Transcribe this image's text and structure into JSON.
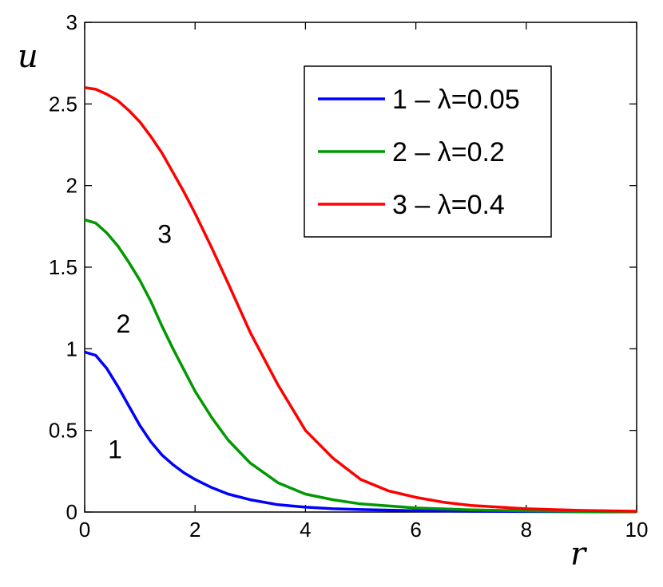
{
  "chart_data": {
    "type": "line",
    "xlabel": "r",
    "ylabel": "u",
    "xlim": [
      0,
      10
    ],
    "ylim": [
      0,
      3
    ],
    "xticks": [
      "0",
      "2",
      "4",
      "6",
      "8",
      "10"
    ],
    "yticks": [
      "0",
      "0.5",
      "1",
      "1.5",
      "2",
      "2.5",
      "3"
    ],
    "grid": false,
    "legend_position": "top-right",
    "series": [
      {
        "name": "1 – λ=0.05",
        "curve_label": "1",
        "color": "#0000ff",
        "x": [
          0,
          0.2,
          0.4,
          0.6,
          0.8,
          1.0,
          1.2,
          1.4,
          1.6,
          1.8,
          2.0,
          2.3,
          2.6,
          3.0,
          3.5,
          4.0,
          4.5,
          5.0,
          6.0,
          7.0,
          8.0,
          9.0,
          10.0
        ],
        "y": [
          0.98,
          0.96,
          0.88,
          0.77,
          0.65,
          0.53,
          0.43,
          0.35,
          0.29,
          0.24,
          0.2,
          0.15,
          0.11,
          0.075,
          0.045,
          0.03,
          0.02,
          0.015,
          0.008,
          0.005,
          0.003,
          0.002,
          0.001
        ]
      },
      {
        "name": "2 – λ=0.2",
        "curve_label": "2",
        "color": "#009900",
        "x": [
          0,
          0.2,
          0.4,
          0.6,
          0.8,
          1.0,
          1.2,
          1.4,
          1.6,
          1.8,
          2.0,
          2.3,
          2.6,
          3.0,
          3.5,
          4.0,
          4.5,
          5.0,
          6.0,
          7.0,
          8.0,
          9.0,
          10.0
        ],
        "y": [
          1.79,
          1.77,
          1.71,
          1.63,
          1.53,
          1.42,
          1.29,
          1.14,
          1.0,
          0.87,
          0.74,
          0.58,
          0.44,
          0.3,
          0.18,
          0.11,
          0.075,
          0.05,
          0.025,
          0.013,
          0.007,
          0.004,
          0.002
        ]
      },
      {
        "name": "3 – λ=0.4",
        "curve_label": "3",
        "color": "#ff0000",
        "x": [
          0,
          0.2,
          0.4,
          0.6,
          0.8,
          1.0,
          1.2,
          1.4,
          1.6,
          1.8,
          2.0,
          2.3,
          2.6,
          3.0,
          3.5,
          4.0,
          4.5,
          5.0,
          5.5,
          6.0,
          6.5,
          7.0,
          8.0,
          9.0,
          10.0
        ],
        "y": [
          2.6,
          2.59,
          2.56,
          2.52,
          2.46,
          2.39,
          2.3,
          2.2,
          2.08,
          1.96,
          1.83,
          1.62,
          1.4,
          1.1,
          0.78,
          0.5,
          0.33,
          0.2,
          0.13,
          0.09,
          0.06,
          0.04,
          0.02,
          0.01,
          0.005
        ]
      }
    ]
  }
}
